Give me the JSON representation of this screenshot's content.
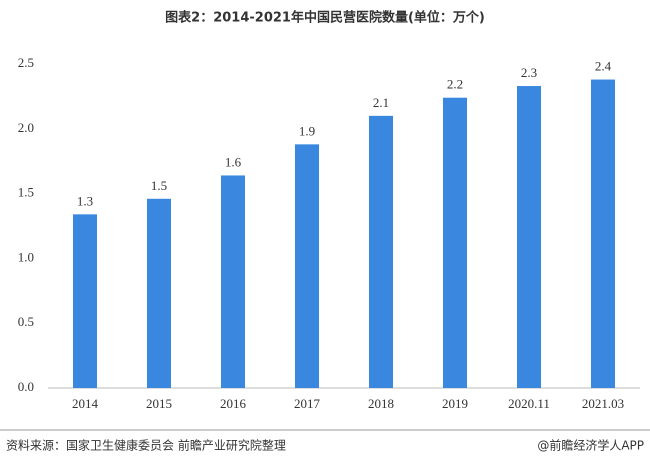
{
  "chart_data": {
    "type": "bar",
    "title": "图表2：2014-2021年中国民营医院数量(单位：万个)",
    "categories": [
      "2014",
      "2015",
      "2016",
      "2017",
      "2018",
      "2019",
      "2020.11",
      "2021.03"
    ],
    "values": [
      1.34,
      1.46,
      1.64,
      1.88,
      2.1,
      2.24,
      2.33,
      2.38
    ],
    "value_labels": [
      "1.3",
      "1.5",
      "1.6",
      "1.9",
      "2.1",
      "2.2",
      "2.3",
      "2.4"
    ],
    "color": "#3a87e0",
    "ylim": [
      0,
      2.5
    ],
    "yticks": [
      {
        "value": 0,
        "label": "0.0"
      },
      0.5,
      {
        "value": 1,
        "label": "1.0"
      },
      1.5,
      {
        "value": 2,
        "label": "2.0"
      },
      2.5
    ],
    "grid": false,
    "source": "资料来源：国家卫生健康委员会 前瞻产业研究院整理",
    "credit": "@前瞻经济学人APP"
  }
}
